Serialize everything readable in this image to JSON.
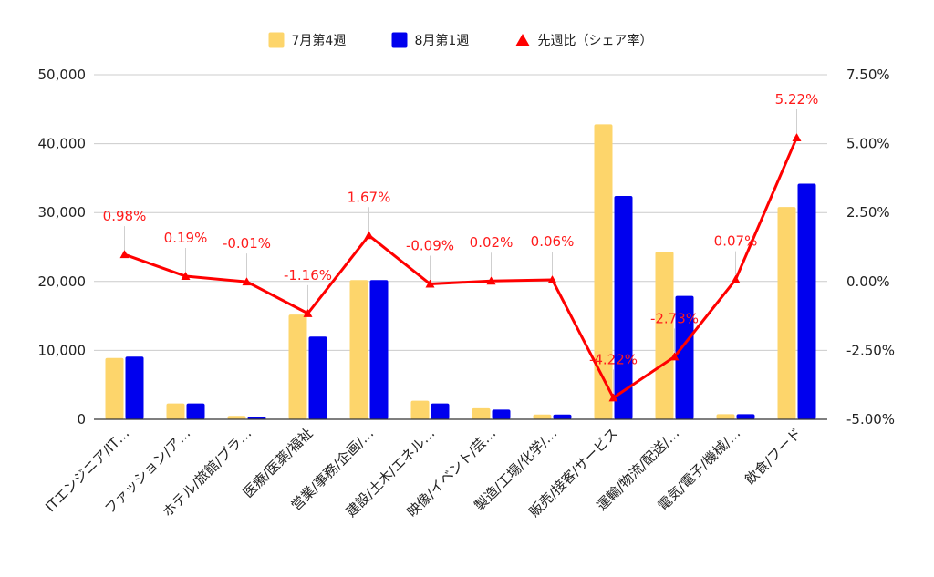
{
  "chart_data": {
    "type": "bar",
    "categories": [
      "ITエンジニア/IT…",
      "ファッション/ア…",
      "ホテル/旅館/ブラ…",
      "医療/医薬/福祉",
      "営業/事務/企画/…",
      "建設/土木/エネル…",
      "映像/イベント/芸…",
      "製造/工場/化学/…",
      "販売/接客/サービス",
      "運輸/物流/配送/…",
      "電気/電子/機械/…",
      "飲食/フード"
    ],
    "series": [
      {
        "name": "7月第4週",
        "type": "bar",
        "axis": "left",
        "color": "#fdd56b",
        "values": [
          8900,
          2300,
          500,
          15200,
          20200,
          2700,
          1600,
          700,
          42800,
          24300,
          750,
          30800
        ]
      },
      {
        "name": "8月第1週",
        "type": "bar",
        "axis": "left",
        "color": "#0000ee",
        "values": [
          9100,
          2300,
          300,
          12000,
          20200,
          2300,
          1400,
          700,
          32400,
          17900,
          750,
          34200
        ]
      },
      {
        "name": "先週比（シェア率）",
        "type": "line",
        "axis": "right",
        "color": "#ff0000",
        "marker": "triangle",
        "values": [
          0.98,
          0.19,
          -0.01,
          -1.16,
          1.67,
          -0.09,
          0.02,
          0.06,
          -4.22,
          -2.73,
          0.07,
          5.22
        ],
        "labels": [
          "0.98%",
          "0.19%",
          "-0.01%",
          "-1.16%",
          "1.67%",
          "-0.09%",
          "0.02%",
          "0.06%",
          "-4.22%",
          "-2.73%",
          "0.07%",
          "5.22%"
        ]
      }
    ],
    "y_left": {
      "ylim": [
        0,
        50000
      ],
      "ticks": [
        0,
        10000,
        20000,
        30000,
        40000,
        50000
      ],
      "tick_labels": [
        "0",
        "10,000",
        "20,000",
        "30,000",
        "40,000",
        "50,000"
      ]
    },
    "y_right": {
      "ylim": [
        -5,
        7.5
      ],
      "ticks": [
        -5,
        -2.5,
        0,
        2.5,
        5,
        7.5
      ],
      "tick_labels": [
        "-5.00%",
        "-2.50%",
        "0.00%",
        "2.50%",
        "5.00%",
        "7.50%"
      ]
    },
    "grid": true,
    "legend": "top-center"
  }
}
